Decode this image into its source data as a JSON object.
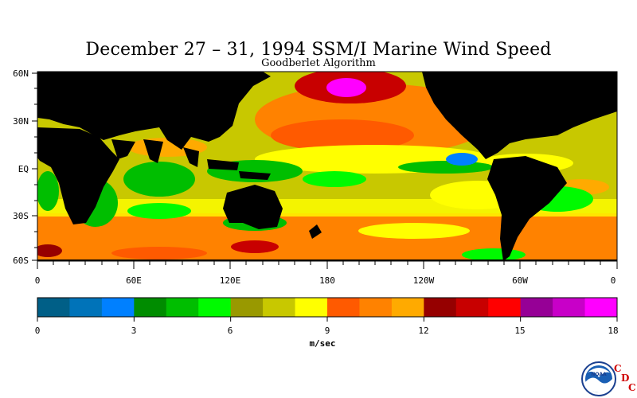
{
  "title": "December 27 – 31, 1994 SSM/I Marine Wind Speed",
  "subtitle": "Goodberlet Algorithm",
  "map": {
    "lat_labels": [
      "60N",
      "30N",
      "EQ",
      "30S",
      "60S"
    ],
    "lon_labels": [
      "0",
      "60E",
      "120E",
      "180",
      "120W",
      "60W",
      "0"
    ]
  },
  "colorbar": {
    "colors": [
      "#005f87",
      "#0073b9",
      "#0080ff",
      "#008c00",
      "#00be00",
      "#00fa00",
      "#999900",
      "#c8c800",
      "#ffff00",
      "#ff5a00",
      "#ff8200",
      "#ffaa00",
      "#960000",
      "#c80000",
      "#ff0000",
      "#960096",
      "#c800c8",
      "#ff00ff"
    ],
    "tick_labels": [
      "0",
      "3",
      "6",
      "9",
      "12",
      "15",
      "18"
    ],
    "units": "m/sec",
    "min": 0,
    "max": 18
  },
  "logo": {
    "text": "NOAA",
    "letters": [
      "C",
      "D",
      "C"
    ]
  }
}
